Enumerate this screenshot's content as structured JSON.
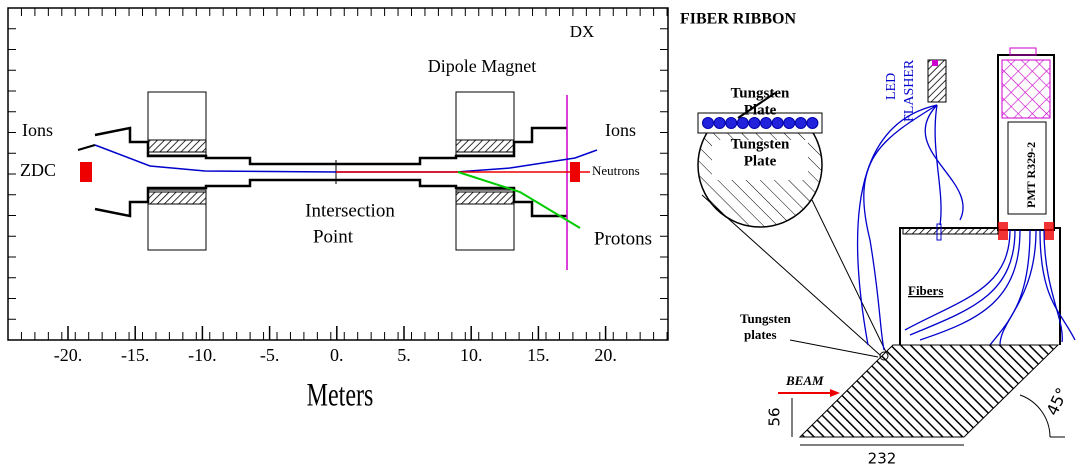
{
  "left": {
    "labels": {
      "dx": "DX",
      "dipole": "Dipole Magnet",
      "ions_left": "Ions",
      "ions_right": "Ions",
      "zdc": "ZDC",
      "neutrons": "Neutrons",
      "intersection": "Intersection",
      "point": "Point",
      "protons": "Protons"
    },
    "axis": {
      "ticks": [
        "-20.",
        "-15.",
        "-10.",
        "-5.",
        "0.",
        "5.",
        "10.",
        "15.",
        "20."
      ],
      "title": "Meters"
    }
  },
  "right": {
    "labels": {
      "fiber_ribbon": "FIBER RIBBON",
      "tungsten_1": "Tungsten",
      "plate_1": "Plate",
      "tungsten_2": "Tungsten",
      "plate_2": "Plate",
      "led": "LED",
      "flasher": "FLASHER",
      "pmt": "PMT R329-2",
      "fibers": "Fibers",
      "tungsten_plates_1": "Tungsten",
      "tungsten_plates_2": "plates",
      "beam": "BEAM",
      "dim_56": "56",
      "dim_232": "232",
      "angle": "45°"
    }
  }
}
